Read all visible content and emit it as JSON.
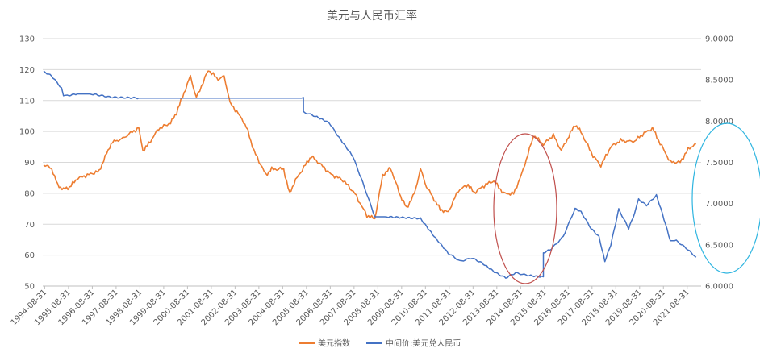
{
  "chart_data": {
    "type": "line",
    "title": "美元与人民币汇率",
    "xlabel": "",
    "ylabel": "",
    "x_tick_labels": [
      "1994-08-31",
      "1995-08-31",
      "1996-08-31",
      "1997-08-31",
      "1998-08-31",
      "1999-08-31",
      "2000-08-31",
      "2001-08-31",
      "2002-08-31",
      "2003-08-31",
      "2004-08-31",
      "2005-08-31",
      "2006-08-31",
      "2007-08-31",
      "2008-08-31",
      "2009-08-31",
      "2010-08-31",
      "2011-08-31",
      "2012-08-31",
      "2013-08-31",
      "2014-08-31",
      "2015-08-31",
      "2016-08-31",
      "2017-08-31",
      "2018-08-31",
      "2019-08-31",
      "2020-08-31",
      "2021-08-31"
    ],
    "y_left": {
      "ylim": [
        50,
        130
      ],
      "ticks": [
        "50",
        "60",
        "70",
        "80",
        "90",
        "100",
        "110",
        "120",
        "130"
      ]
    },
    "y_right": {
      "ylim": [
        6.0,
        9.0
      ],
      "ticks": [
        "6.0000",
        "6.5000",
        "7.0000",
        "7.5000",
        "8.0000",
        "8.5000",
        "9.0000"
      ]
    },
    "grid": true,
    "legend_position": "bottom",
    "series": [
      {
        "name": "美元指数",
        "axis": "left",
        "color": "#ED7D31",
        "points": [
          [
            "1994-08",
            89
          ],
          [
            "1994-12",
            88
          ],
          [
            "1995-03",
            83
          ],
          [
            "1995-06",
            81
          ],
          [
            "1995-09",
            82
          ],
          [
            "1996-01",
            85
          ],
          [
            "1996-06",
            86
          ],
          [
            "1996-12",
            87
          ],
          [
            "1997-03",
            92
          ],
          [
            "1997-06",
            96
          ],
          [
            "1997-09",
            97
          ],
          [
            "1997-12",
            98
          ],
          [
            "1998-03",
            99
          ],
          [
            "1998-08",
            101
          ],
          [
            "1998-10",
            94
          ],
          [
            "1999-01",
            96
          ],
          [
            "1999-06",
            101
          ],
          [
            "1999-12",
            103
          ],
          [
            "2000-03",
            106
          ],
          [
            "2000-06",
            111
          ],
          [
            "2000-10",
            118
          ],
          [
            "2001-01",
            111
          ],
          [
            "2001-07",
            120
          ],
          [
            "2001-12",
            117
          ],
          [
            "2002-03",
            118
          ],
          [
            "2002-06",
            109
          ],
          [
            "2002-12",
            104
          ],
          [
            "2003-03",
            100
          ],
          [
            "2003-06",
            94
          ],
          [
            "2003-12",
            86
          ],
          [
            "2004-03",
            88
          ],
          [
            "2004-09",
            88
          ],
          [
            "2004-12",
            80
          ],
          [
            "2005-03",
            84
          ],
          [
            "2005-08",
            89
          ],
          [
            "2005-11",
            92
          ],
          [
            "2006-03",
            90
          ],
          [
            "2006-09",
            86
          ],
          [
            "2007-03",
            84
          ],
          [
            "2007-09",
            80
          ],
          [
            "2008-03",
            73
          ],
          [
            "2008-07",
            72
          ],
          [
            "2008-11",
            86
          ],
          [
            "2009-03",
            88
          ],
          [
            "2009-08",
            79
          ],
          [
            "2009-11",
            75
          ],
          [
            "2010-03",
            80
          ],
          [
            "2010-06",
            88
          ],
          [
            "2010-09",
            82
          ],
          [
            "2011-04",
            75
          ],
          [
            "2011-08",
            74
          ],
          [
            "2012-01",
            81
          ],
          [
            "2012-06",
            83
          ],
          [
            "2012-09",
            80
          ],
          [
            "2013-03",
            83
          ],
          [
            "2013-07",
            84
          ],
          [
            "2013-12",
            80
          ],
          [
            "2014-05",
            80
          ],
          [
            "2014-09",
            86
          ],
          [
            "2015-01",
            94
          ],
          [
            "2015-03",
            99
          ],
          [
            "2015-08",
            96
          ],
          [
            "2016-01",
            99
          ],
          [
            "2016-05",
            94
          ],
          [
            "2016-12",
            102
          ],
          [
            "2017-03",
            100
          ],
          [
            "2017-09",
            92
          ],
          [
            "2018-01",
            89
          ],
          [
            "2018-06",
            95
          ],
          [
            "2018-11",
            97
          ],
          [
            "2019-06",
            97
          ],
          [
            "2019-10",
            99
          ],
          [
            "2020-03",
            101
          ],
          [
            "2020-06",
            97
          ],
          [
            "2020-12",
            90
          ],
          [
            "2021-05",
            90
          ],
          [
            "2021-09",
            94
          ],
          [
            "2022-01",
            96
          ]
        ]
      },
      {
        "name": "中间价:美元兑人民币",
        "axis": "right",
        "color": "#4472C4",
        "points": [
          [
            "1994-08",
            8.6
          ],
          [
            "1994-12",
            8.55
          ],
          [
            "1995-05",
            8.4
          ],
          [
            "1995-06",
            8.3
          ],
          [
            "1995-08",
            8.31
          ],
          [
            "1996-01",
            8.33
          ],
          [
            "1996-08",
            8.33
          ],
          [
            "1997-06",
            8.29
          ],
          [
            "1998-08",
            8.28
          ],
          [
            "2000-01",
            8.28
          ],
          [
            "2002-01",
            8.28
          ],
          [
            "2005-07",
            8.28
          ],
          [
            "2005-07",
            8.11
          ],
          [
            "2006-01",
            8.06
          ],
          [
            "2006-08",
            7.98
          ],
          [
            "2007-01",
            7.8
          ],
          [
            "2007-08",
            7.57
          ],
          [
            "2008-01",
            7.25
          ],
          [
            "2008-07",
            6.84
          ],
          [
            "2009-01",
            6.84
          ],
          [
            "2010-06",
            6.82
          ],
          [
            "2011-01",
            6.6
          ],
          [
            "2011-08",
            6.4
          ],
          [
            "2012-02",
            6.3
          ],
          [
            "2012-08",
            6.34
          ],
          [
            "2013-01",
            6.28
          ],
          [
            "2013-08",
            6.16
          ],
          [
            "2014-01",
            6.1
          ],
          [
            "2014-06",
            6.16
          ],
          [
            "2014-12",
            6.13
          ],
          [
            "2015-08",
            6.11
          ],
          [
            "2015-08",
            6.4
          ],
          [
            "2015-12",
            6.45
          ],
          [
            "2016-06",
            6.6
          ],
          [
            "2016-12",
            6.94
          ],
          [
            "2017-03",
            6.9
          ],
          [
            "2017-08",
            6.7
          ],
          [
            "2017-12",
            6.6
          ],
          [
            "2018-03",
            6.3
          ],
          [
            "2018-06",
            6.5
          ],
          [
            "2018-10",
            6.93
          ],
          [
            "2019-03",
            6.7
          ],
          [
            "2019-06",
            6.88
          ],
          [
            "2019-08",
            7.05
          ],
          [
            "2019-12",
            6.98
          ],
          [
            "2020-05",
            7.1
          ],
          [
            "2020-08",
            6.88
          ],
          [
            "2020-12",
            6.55
          ],
          [
            "2021-03",
            6.55
          ],
          [
            "2021-08",
            6.46
          ],
          [
            "2022-01",
            6.35
          ]
        ]
      }
    ],
    "annotations": [
      {
        "shape": "ellipse",
        "color": "#C0504D",
        "around": "2014-08-31 breakout"
      },
      {
        "shape": "ellipse",
        "color": "#2FB5E0",
        "around": "right axis range"
      }
    ]
  }
}
